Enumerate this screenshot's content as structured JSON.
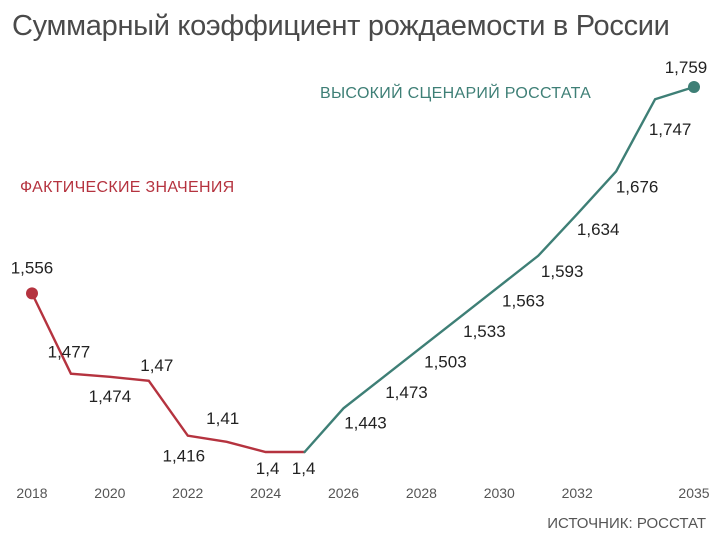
{
  "title": "Суммарный коэффициент рождаемости в России",
  "source": "ИСТОЧНИК: РОССТАТ",
  "colors": {
    "actual": "#b5333f",
    "forecast": "#3e7f76",
    "text": "#222222",
    "axis": "#555555"
  },
  "chart_data": {
    "type": "line",
    "title": "Суммарный коэффициент рождаемости в России",
    "xlabel": "",
    "ylabel": "",
    "x_ticks": [
      "2018",
      "2020",
      "2022",
      "2024",
      "2026",
      "2028",
      "2030",
      "2032",
      "2035"
    ],
    "ylim": [
      1.35,
      1.8
    ],
    "grid": false,
    "series": [
      {
        "name": "ФАКТИЧЕСКИЕ ЗНАЧЕНИЯ",
        "color": "#b5333f",
        "x": [
          2018,
          2019,
          2020,
          2021,
          2022,
          2023,
          2024,
          2025
        ],
        "y": [
          1.556,
          1.477,
          1.474,
          1.47,
          1.416,
          1.41,
          1.4,
          1.4
        ],
        "labels": [
          "1,556",
          "1,477",
          "1,474",
          "1,47",
          "1,416",
          "1,41",
          "1,4",
          "1,4"
        ]
      },
      {
        "name": "ВЫСОКИЙ СЦЕНАРИЙ РОССТАТА",
        "color": "#3e7f76",
        "x": [
          2025,
          2026,
          2027,
          2028,
          2029,
          2030,
          2031,
          2032,
          2033,
          2034,
          2035
        ],
        "y": [
          1.4,
          1.443,
          1.473,
          1.503,
          1.533,
          1.563,
          1.593,
          1.634,
          1.676,
          1.747,
          1.759
        ],
        "labels": [
          "",
          "1,443",
          "1,473",
          "1,503",
          "1,533",
          "1,563",
          "1,593",
          "1,634",
          "1,676",
          "1,747",
          "1,759"
        ]
      }
    ]
  }
}
